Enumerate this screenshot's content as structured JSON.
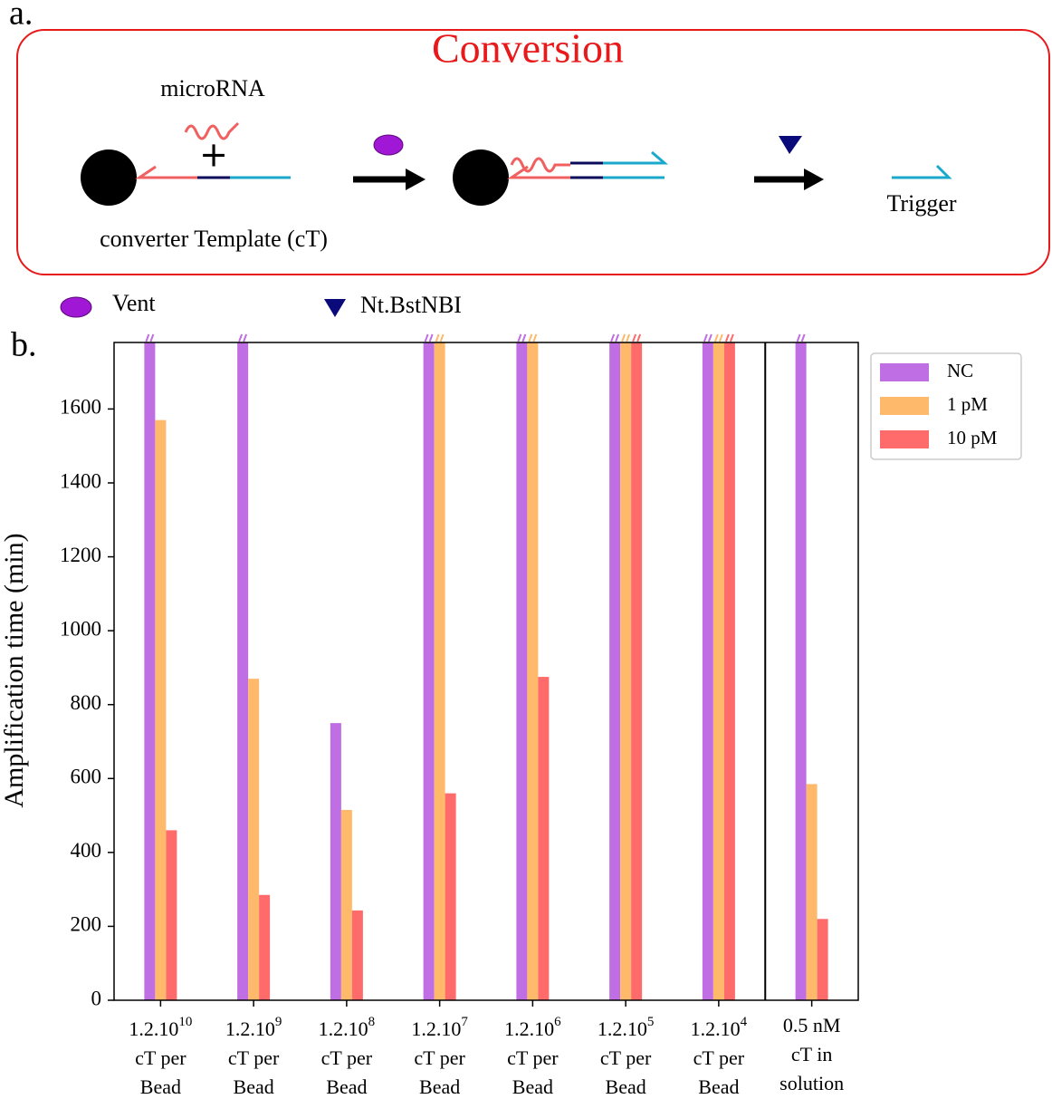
{
  "diagram": {
    "panel_a_label": "a.",
    "title": "Conversion",
    "microrna_label": "microRNA",
    "plus_sign": "+",
    "template_label": "converter Template (cT)",
    "trigger_label": "Trigger",
    "legend_vent": "Vent",
    "legend_nicking": "Nt.BstNBI",
    "panel_b_label": "b."
  },
  "chart_data": {
    "type": "bar",
    "y_label": "Amplification time (min)",
    "categories": [
      {
        "base": "1.2.10",
        "exp": "10",
        "rest": [
          "cT per",
          "Bead"
        ]
      },
      {
        "base": "1.2.10",
        "exp": "9",
        "rest": [
          "cT per",
          "Bead"
        ]
      },
      {
        "base": "1.2.10",
        "exp": "8",
        "rest": [
          "cT per",
          "Bead"
        ]
      },
      {
        "base": "1.2.10",
        "exp": "7",
        "rest": [
          "cT per",
          "Bead"
        ]
      },
      {
        "base": "1.2.10",
        "exp": "6",
        "rest": [
          "cT per",
          "Bead"
        ]
      },
      {
        "base": "1.2.10",
        "exp": "5",
        "rest": [
          "cT per",
          "Bead"
        ]
      },
      {
        "base": "1.2.10",
        "exp": "4",
        "rest": [
          "cT per",
          "Bead"
        ]
      },
      {
        "base": "0.5 nM",
        "rest": [
          "cT in",
          "solution"
        ]
      }
    ],
    "series": [
      {
        "name": "NC",
        "color": "#c06ee3",
        "values": [
          1780,
          1780,
          750,
          1780,
          1780,
          1780,
          1780,
          1780
        ]
      },
      {
        "name": "1 pM",
        "color": "#ffb96b",
        "values": [
          1570,
          870,
          515,
          1780,
          1780,
          1780,
          1780,
          585
        ]
      },
      {
        "name": "10 pM",
        "color": "#ff6a6a",
        "values": [
          460,
          285,
          243,
          560,
          875,
          1780,
          1780,
          220
        ]
      }
    ],
    "ylim": [
      0,
      1780
    ],
    "yticks": [
      0,
      200,
      400,
      600,
      800,
      1000,
      1200,
      1400,
      1600
    ],
    "divider_before_category": 7,
    "legend": "outside upper right"
  }
}
